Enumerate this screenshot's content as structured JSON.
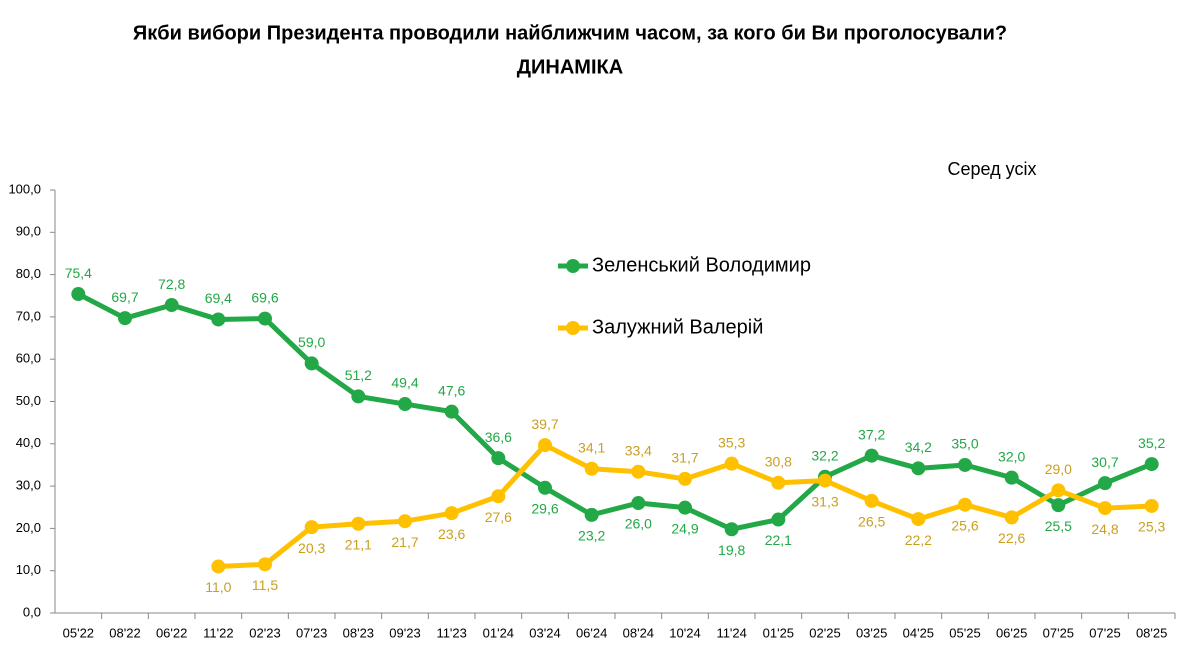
{
  "chart_data": {
    "type": "line",
    "title": "Якби вибори Президента проводили найближчим часом, за кого би Ви проголосували?",
    "subtitle": "ДИНАМІКА",
    "annotation": "Серед усіх",
    "categories": [
      "05'22",
      "08'22",
      "06'22",
      "11'22",
      "02'23",
      "07'23",
      "08'23",
      "09'23",
      "11'23",
      "01'24",
      "03'24",
      "06'24",
      "08'24",
      "10'24",
      "11'24",
      "01'25",
      "02'25",
      "03'25",
      "04'25",
      "05'25",
      "06'25",
      "07'25",
      "07'25",
      "08'25"
    ],
    "series": [
      {
        "name": "Зеленський Володимир",
        "color": "#22a846",
        "values": [
          75.4,
          69.7,
          72.8,
          69.4,
          69.6,
          59.0,
          51.2,
          49.4,
          47.6,
          36.6,
          29.6,
          23.2,
          26.0,
          24.9,
          19.8,
          22.1,
          32.2,
          37.2,
          34.2,
          35.0,
          32.0,
          25.5,
          30.7,
          35.2
        ],
        "value_labels": [
          "75,4",
          "69,7",
          "72,8",
          "69,4",
          "69,6",
          "59,0",
          "51,2",
          "49,4",
          "47,6",
          "36,6",
          "29,6",
          "23,2",
          "26,0",
          "24,9",
          "19,8",
          "22,1",
          "32,2",
          "37,2",
          "34,2",
          "35,0",
          "32,0",
          "25,5",
          "30,7",
          "35,2"
        ]
      },
      {
        "name": "Залужний Валерій",
        "color": "#ffc000",
        "values": [
          null,
          null,
          null,
          11.0,
          11.5,
          20.3,
          21.1,
          21.7,
          23.6,
          27.6,
          39.7,
          34.1,
          33.4,
          31.7,
          35.3,
          30.8,
          31.3,
          26.5,
          22.2,
          25.6,
          22.6,
          29.0,
          24.8,
          25.3
        ],
        "value_labels": [
          null,
          null,
          null,
          "11,0",
          "11,5",
          "20,3",
          "21,1",
          "21,7",
          "23,6",
          "27,6",
          "39,7",
          "34,1",
          "33,4",
          "31,7",
          "35,3",
          "30,8",
          "31,3",
          "26,5",
          "22,2",
          "25,6",
          "22,6",
          "29,0",
          "24,8",
          "25,3"
        ]
      }
    ],
    "ylim": [
      0,
      100
    ],
    "yticks": [
      {
        "value": 0,
        "label": "0,0"
      },
      {
        "value": 10,
        "label": "10,0"
      },
      {
        "value": 20,
        "label": "20,0"
      },
      {
        "value": 30,
        "label": "30,0"
      },
      {
        "value": 40,
        "label": "40,0"
      },
      {
        "value": 50,
        "label": "50,0"
      },
      {
        "value": 60,
        "label": "60,0"
      },
      {
        "value": 70,
        "label": "70,0"
      },
      {
        "value": 80,
        "label": "80,0"
      },
      {
        "value": 90,
        "label": "90,0"
      },
      {
        "value": 100,
        "label": "100,0"
      }
    ],
    "grid": false,
    "legend": "inside"
  }
}
